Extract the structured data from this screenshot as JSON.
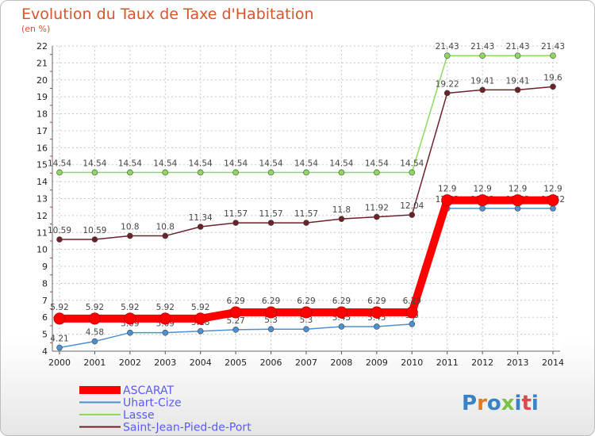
{
  "chart_data": {
    "type": "line",
    "title": "Evolution du Taux de Taxe d'Habitation",
    "subtitle": "(en %)",
    "x": [
      2000,
      2001,
      2002,
      2003,
      2004,
      2005,
      2006,
      2007,
      2008,
      2009,
      2010,
      2011,
      2012,
      2013,
      2014
    ],
    "ylim": [
      4,
      22
    ],
    "yticks": [
      4,
      5,
      6,
      7,
      8,
      9,
      10,
      11,
      12,
      13,
      14,
      15,
      16,
      17,
      18,
      19,
      20,
      21,
      22
    ],
    "grid": true,
    "legend_position": "bottom-left",
    "series": [
      {
        "name": "Uhart-Cize",
        "color": "#4e8fd0",
        "values": [
          4.21,
          4.58,
          5.09,
          5.09,
          5.18,
          5.27,
          5.3,
          5.3,
          5.45,
          5.45,
          5.6,
          12.42,
          12.42,
          12.42,
          12.42
        ],
        "labels": [
          "4.21",
          "4.58",
          "5.09",
          "5.09",
          "5.18",
          "5.27",
          "5.3",
          "5.3",
          "5.45",
          "5.45",
          "5.6",
          "12.42",
          "12.42",
          "12.42",
          "12.42"
        ]
      },
      {
        "name": "Lasse",
        "color": "#8ed862",
        "values": [
          14.54,
          14.54,
          14.54,
          14.54,
          14.54,
          14.54,
          14.54,
          14.54,
          14.54,
          14.54,
          14.54,
          21.43,
          21.43,
          21.43,
          21.43
        ],
        "labels": [
          "14.54",
          "14.54",
          "14.54",
          "14.54",
          "14.54",
          "14.54",
          "14.54",
          "14.54",
          "14.54",
          "14.54",
          "14.54",
          "21.43",
          "21.43",
          "21.43",
          "21.43"
        ]
      },
      {
        "name": "Saint-Jean-Pied-de-Port",
        "color": "#6b2228",
        "values": [
          10.59,
          10.59,
          10.8,
          10.8,
          11.34,
          11.57,
          11.57,
          11.57,
          11.8,
          11.92,
          12.04,
          19.22,
          19.41,
          19.41,
          19.6
        ],
        "labels": [
          "10.59",
          "10.59",
          "10.8",
          "10.8",
          "11.34",
          "11.57",
          "11.57",
          "11.57",
          "11.8",
          "11.92",
          "12.04",
          "19.22",
          "19.41",
          "19.41",
          "19.6"
        ]
      },
      {
        "name": "ASCARAT",
        "color": "#ff0000",
        "values": [
          5.92,
          5.92,
          5.92,
          5.92,
          5.92,
          6.29,
          6.29,
          6.29,
          6.29,
          6.29,
          6.29,
          12.9,
          12.9,
          12.9,
          12.9
        ],
        "labels": [
          "5.92",
          "5.92",
          "5.92",
          "5.92",
          "5.92",
          "6.29",
          "6.29",
          "6.29",
          "6.29",
          "6.29",
          "6.29",
          "12.9",
          "12.9",
          "12.9",
          "12.9"
        ]
      }
    ],
    "legend_order": [
      "ASCARAT",
      "Uhart-Cize",
      "Lasse",
      "Saint-Jean-Pied-de-Port"
    ]
  },
  "logo": {
    "text": "Proxiti",
    "letter_colors": [
      "#3b82c4",
      "#e07b1f",
      "#3b82c4",
      "#7cc243",
      "#3b82c4",
      "#d64c4c",
      "#3b82c4"
    ]
  }
}
